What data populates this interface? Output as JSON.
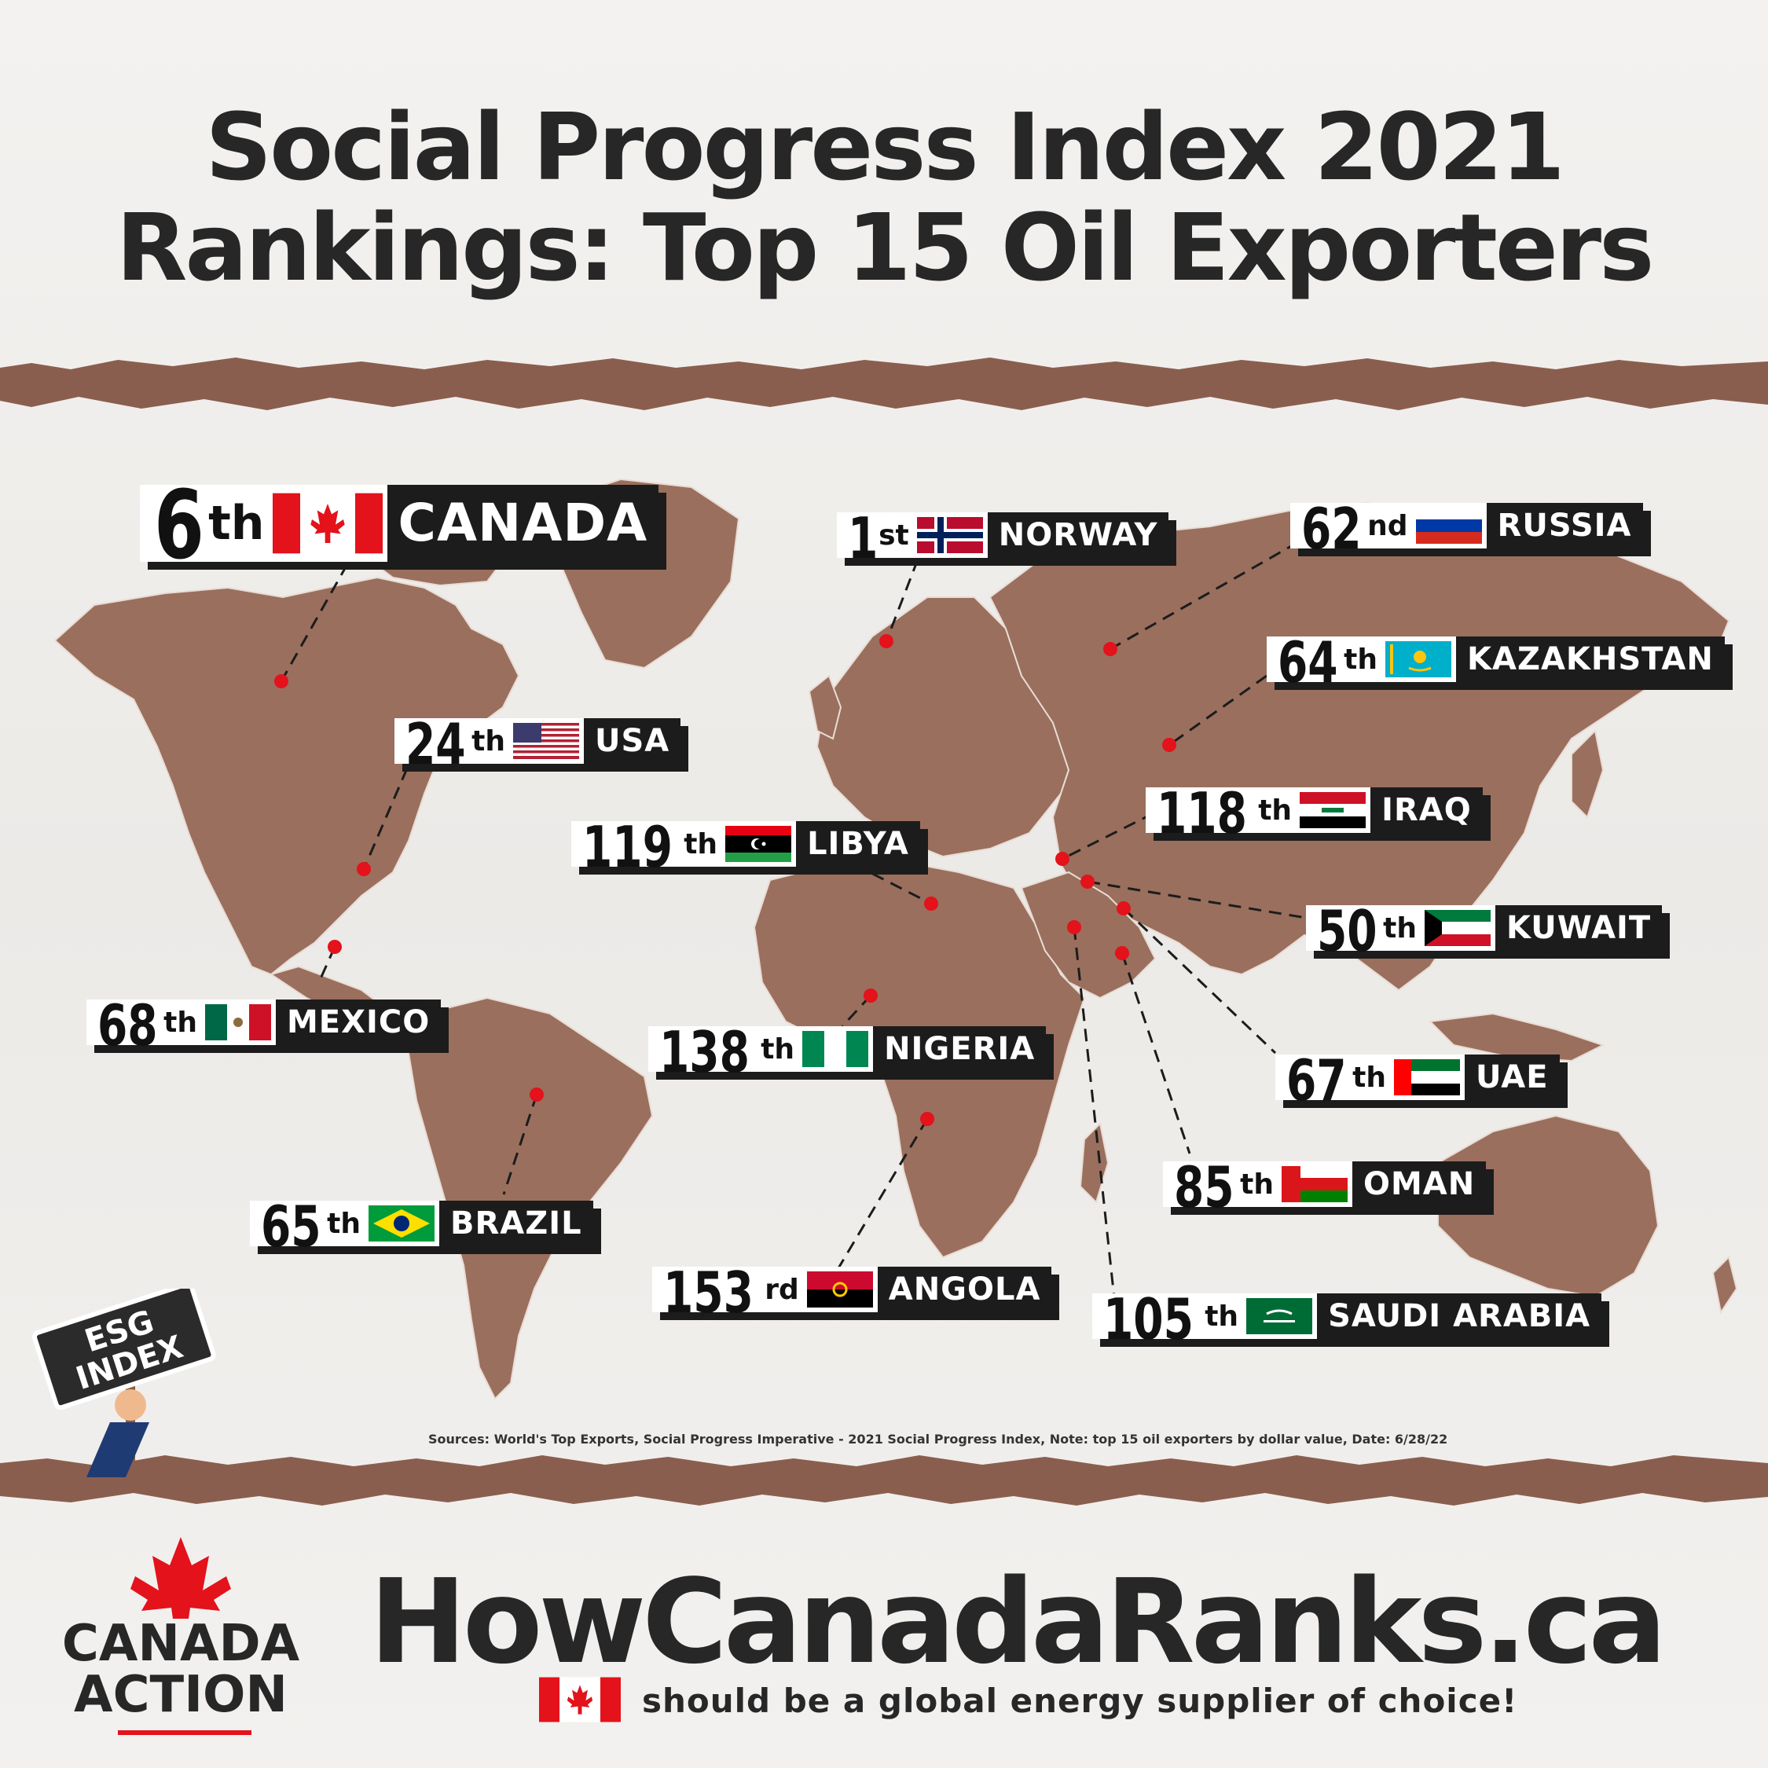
{
  "title_line1": "Social Progress Index 2021",
  "title_line2": "Rankings: Top 15 Oil Exporters",
  "countries": [
    {
      "rank": "6",
      "suffix": "th",
      "name": "CANADA",
      "flag": "canada"
    },
    {
      "rank": "1",
      "suffix": "st",
      "name": "NORWAY",
      "flag": "norway"
    },
    {
      "rank": "62",
      "suffix": "nd",
      "name": "RUSSIA",
      "flag": "russia"
    },
    {
      "rank": "64",
      "suffix": "th",
      "name": "KAZAKHSTAN",
      "flag": "kazakhstan"
    },
    {
      "rank": "24",
      "suffix": "th",
      "name": "USA",
      "flag": "usa"
    },
    {
      "rank": "118",
      "suffix": "th",
      "name": "IRAQ",
      "flag": "iraq"
    },
    {
      "rank": "119",
      "suffix": "th",
      "name": "LIBYA",
      "flag": "libya"
    },
    {
      "rank": "50",
      "suffix": "th",
      "name": "KUWAIT",
      "flag": "kuwait"
    },
    {
      "rank": "68",
      "suffix": "th",
      "name": "MEXICO",
      "flag": "mexico"
    },
    {
      "rank": "138",
      "suffix": "th",
      "name": "NIGERIA",
      "flag": "nigeria"
    },
    {
      "rank": "67",
      "suffix": "th",
      "name": "UAE",
      "flag": "uae"
    },
    {
      "rank": "85",
      "suffix": "th",
      "name": "OMAN",
      "flag": "oman"
    },
    {
      "rank": "65",
      "suffix": "th",
      "name": "BRAZIL",
      "flag": "brazil"
    },
    {
      "rank": "153",
      "suffix": "rd",
      "name": "ANGOLA",
      "flag": "angola"
    },
    {
      "rank": "105",
      "suffix": "th",
      "name": "SAUDI ARABIA",
      "flag": "saudi-arabia"
    }
  ],
  "sign_line1": "ESG",
  "sign_line2": "INDEX",
  "sources": "Sources: World's Top Exports, Social Progress Imperative - 2021 Social Progress Index, Note: top 15 oil exporters  by dollar value, Date: 6/28/22",
  "website": "HowCanadaRanks.ca",
  "tagline": "should be a global energy supplier of choice!",
  "logo_line1": "CANADA",
  "logo_line2": "ACTION",
  "colors": {
    "map": "#9a6f5e",
    "tear": "#8a5e4e",
    "marker": "#e3121b",
    "text": "#272727",
    "accent": "#e3121b"
  }
}
